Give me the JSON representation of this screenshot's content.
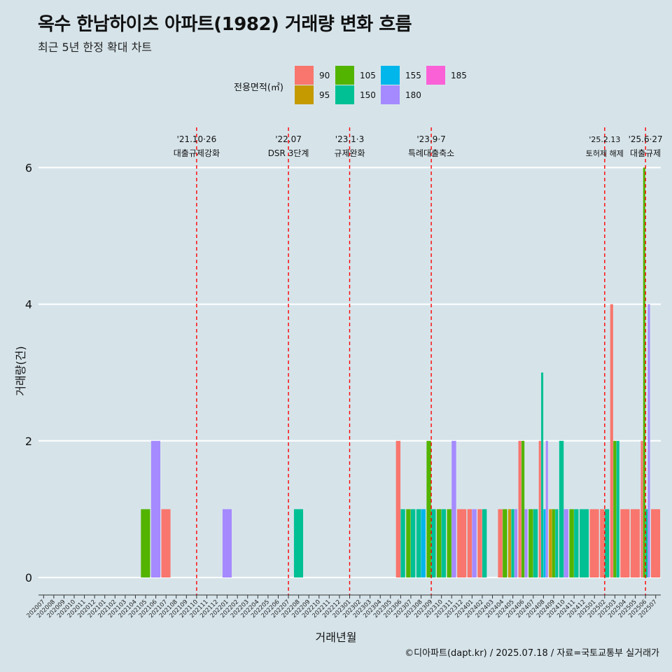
{
  "title": "옥수 한남하이츠 아파트(1982) 거래량 변화 흐름",
  "subtitle": "최근 5년 한정 확대 차트",
  "caption": "©디아파트(dapt.kr) / 2025.07.18 / 자료=국토교통부 실거래가",
  "legend": {
    "title": "전용면적(㎡)",
    "items": [
      {
        "label": "90",
        "color": "#f8766d"
      },
      {
        "label": "95",
        "color": "#c49a00"
      },
      {
        "label": "105",
        "color": "#53b400"
      },
      {
        "label": "150",
        "color": "#00c094"
      },
      {
        "label": "155",
        "color": "#00b6eb"
      },
      {
        "label": "180",
        "color": "#a58aff"
      },
      {
        "label": "185",
        "color": "#fb61d7"
      }
    ]
  },
  "chart_data": {
    "type": "bar",
    "xlabel": "거래년월",
    "ylabel": "거래량(건)",
    "ylim": [
      0,
      6.4
    ],
    "yticks": [
      0,
      2,
      4,
      6
    ],
    "categories": [
      "202007",
      "202008",
      "202009",
      "202010",
      "202011",
      "202012",
      "202101",
      "202102",
      "202103",
      "202104",
      "202105",
      "202106",
      "202107",
      "202108",
      "202109",
      "202110",
      "202111",
      "202112",
      "202201",
      "202202",
      "202203",
      "202204",
      "202205",
      "202206",
      "202207",
      "202208",
      "202209",
      "202210",
      "202211",
      "202212",
      "202301",
      "202302",
      "202303",
      "202304",
      "202305",
      "202306",
      "202307",
      "202308",
      "202309",
      "202310",
      "202311",
      "202312",
      "202401",
      "202402",
      "202403",
      "202404",
      "202405",
      "202406",
      "202407",
      "202408",
      "202409",
      "202410",
      "202411",
      "202412",
      "202501",
      "202502",
      "202503",
      "202504",
      "202505",
      "202506",
      "202507"
    ],
    "bars": [
      {
        "month": "202105",
        "series": [
          "105"
        ],
        "values": [
          1
        ]
      },
      {
        "month": "202106",
        "series": [
          "180"
        ],
        "values": [
          2
        ]
      },
      {
        "month": "202107",
        "series": [
          "90"
        ],
        "values": [
          1
        ]
      },
      {
        "month": "202201",
        "series": [
          "180"
        ],
        "values": [
          1
        ]
      },
      {
        "month": "202208",
        "series": [
          "150"
        ],
        "values": [
          1
        ]
      },
      {
        "month": "202306",
        "series": [
          "90",
          "150"
        ],
        "values": [
          2,
          1
        ]
      },
      {
        "month": "202307",
        "series": [
          "105",
          "150"
        ],
        "values": [
          1,
          1
        ]
      },
      {
        "month": "202308",
        "series": [
          "150",
          "155"
        ],
        "values": [
          1,
          1
        ]
      },
      {
        "month": "202309",
        "series": [
          "105",
          "150"
        ],
        "values": [
          2,
          1
        ]
      },
      {
        "month": "202310",
        "series": [
          "105",
          "150"
        ],
        "values": [
          1,
          1
        ]
      },
      {
        "month": "202311",
        "series": [
          "105",
          "180"
        ],
        "values": [
          1,
          2
        ]
      },
      {
        "month": "202312",
        "series": [
          "90"
        ],
        "values": [
          1
        ]
      },
      {
        "month": "202401",
        "series": [
          "90",
          "180"
        ],
        "values": [
          1,
          1
        ]
      },
      {
        "month": "202402",
        "series": [
          "90",
          "150"
        ],
        "values": [
          1,
          1
        ]
      },
      {
        "month": "202404",
        "series": [
          "90",
          "105"
        ],
        "values": [
          1,
          1
        ]
      },
      {
        "month": "202405",
        "series": [
          "95",
          "150",
          "180"
        ],
        "values": [
          1,
          1,
          1
        ]
      },
      {
        "month": "202406",
        "series": [
          "90",
          "105",
          "180"
        ],
        "values": [
          2,
          2,
          1
        ]
      },
      {
        "month": "202407",
        "series": [
          "105",
          "150"
        ],
        "values": [
          1,
          1
        ]
      },
      {
        "month": "202408",
        "series": [
          "90",
          "150",
          "155",
          "180"
        ],
        "values": [
          2,
          3,
          1,
          2
        ]
      },
      {
        "month": "202409",
        "series": [
          "95",
          "105",
          "150"
        ],
        "values": [
          1,
          1,
          1
        ]
      },
      {
        "month": "202410",
        "series": [
          "150",
          "180"
        ],
        "values": [
          2,
          1
        ]
      },
      {
        "month": "202411",
        "series": [
          "105",
          "150"
        ],
        "values": [
          1,
          1
        ]
      },
      {
        "month": "202412",
        "series": [
          "150"
        ],
        "values": [
          1
        ]
      },
      {
        "month": "202501",
        "series": [
          "90"
        ],
        "values": [
          1
        ]
      },
      {
        "month": "202502",
        "series": [
          "90",
          "150"
        ],
        "values": [
          1,
          1
        ]
      },
      {
        "month": "202503",
        "series": [
          "90",
          "105",
          "150"
        ],
        "values": [
          4,
          2,
          2
        ]
      },
      {
        "month": "202504",
        "series": [
          "90"
        ],
        "values": [
          1
        ]
      },
      {
        "month": "202505",
        "series": [
          "90"
        ],
        "values": [
          1
        ]
      },
      {
        "month": "202506",
        "series": [
          "90",
          "105",
          "150",
          "180"
        ],
        "values": [
          2,
          6,
          1,
          4
        ]
      },
      {
        "month": "202507",
        "series": [
          "90"
        ],
        "values": [
          1
        ]
      }
    ],
    "events": [
      {
        "month": "202110",
        "date": "'21.10·26",
        "label": "대출규제강화"
      },
      {
        "month": "202207",
        "date": "'22.07",
        "label": "DSR 3단계"
      },
      {
        "month": "202301",
        "date": "'23.1·3",
        "label": "규제완화"
      },
      {
        "month": "202309",
        "date": "'23.9·7",
        "label": "특례대출축소"
      },
      {
        "month": "202502",
        "date": "'25.2.13",
        "label": "토허제 해제"
      },
      {
        "month": "202506",
        "date": "'25.6·27",
        "label": "대출규제"
      }
    ]
  }
}
